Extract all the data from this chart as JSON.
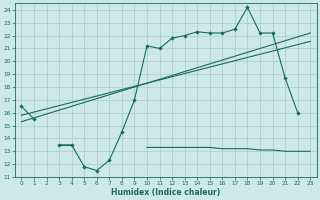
{
  "x": [
    0,
    1,
    2,
    3,
    4,
    5,
    6,
    7,
    8,
    9,
    10,
    11,
    12,
    13,
    14,
    15,
    16,
    17,
    18,
    19,
    20,
    21,
    22,
    23
  ],
  "line_main": [
    16.5,
    15.5,
    null,
    13.5,
    13.5,
    11.8,
    11.5,
    12.3,
    14.5,
    17.0,
    21.2,
    21.0,
    21.8,
    22.0,
    22.3,
    22.2,
    22.2,
    22.5,
    24.2,
    22.2,
    22.2,
    18.7,
    16.0,
    null
  ],
  "line_trend1": [
    15.8,
    16.05,
    16.3,
    16.55,
    16.8,
    17.05,
    17.3,
    17.55,
    17.8,
    18.05,
    18.3,
    18.55,
    18.8,
    19.05,
    19.3,
    19.55,
    19.8,
    20.05,
    20.3,
    20.55,
    20.8,
    21.05,
    21.3,
    21.55
  ],
  "line_trend2": [
    15.3,
    15.6,
    15.9,
    16.2,
    16.5,
    16.8,
    17.1,
    17.4,
    17.7,
    18.0,
    18.3,
    18.6,
    18.9,
    19.2,
    19.5,
    19.8,
    20.1,
    20.4,
    20.7,
    21.0,
    21.3,
    21.6,
    21.9,
    22.2
  ],
  "line_flat": [
    null,
    null,
    null,
    13.5,
    13.5,
    null,
    null,
    null,
    null,
    null,
    13.3,
    13.3,
    13.3,
    13.3,
    13.3,
    13.3,
    13.2,
    13.2,
    13.2,
    13.1,
    13.1,
    13.0,
    13.0,
    13.0
  ],
  "color": "#1a6b5a",
  "bg_color": "#cce8e8",
  "grid_color": "#aacccc",
  "xlabel": "Humidex (Indice chaleur)",
  "xlim": [
    -0.5,
    23.5
  ],
  "ylim": [
    11,
    24.5
  ],
  "xticks": [
    0,
    1,
    2,
    3,
    4,
    5,
    6,
    7,
    8,
    9,
    10,
    11,
    12,
    13,
    14,
    15,
    16,
    17,
    18,
    19,
    20,
    21,
    22,
    23
  ],
  "yticks": [
    11,
    12,
    13,
    14,
    15,
    16,
    17,
    18,
    19,
    20,
    21,
    22,
    23,
    24
  ]
}
